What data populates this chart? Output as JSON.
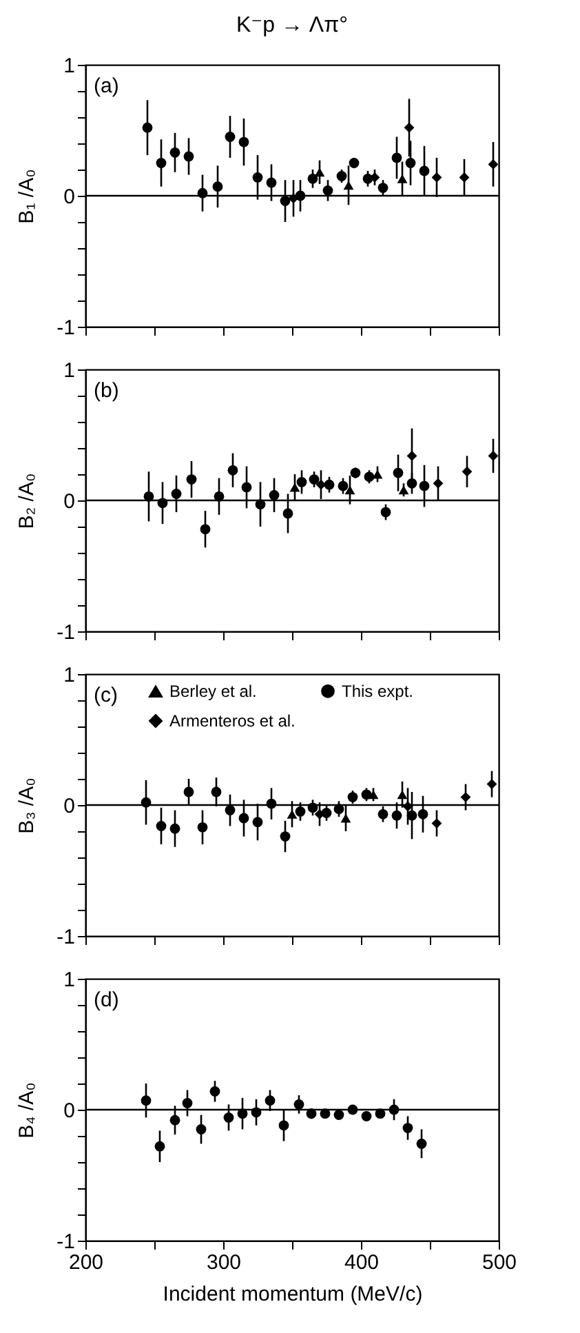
{
  "chart_data": [
    {
      "type": "scatter",
      "title": "K⁻p → Λπ°",
      "ylabel": "B₁ /A₀",
      "annotations": [
        "(a)"
      ],
      "xlim": [
        200,
        500
      ],
      "ylim": [
        -1,
        1
      ],
      "xticks": [
        200,
        {
          "value": 250,
          "label": null
        },
        300,
        {
          "value": 350,
          "label": null
        },
        400,
        {
          "value": 450,
          "label": null
        },
        500
      ],
      "yticks": [
        -1,
        {
          "value": -0.8,
          "label": null
        },
        {
          "value": -0.6,
          "label": null
        },
        {
          "value": -0.4,
          "label": null
        },
        {
          "value": -0.2,
          "label": null
        },
        0,
        {
          "value": 0.2,
          "label": null
        },
        {
          "value": 0.4,
          "label": null
        },
        {
          "value": 0.6,
          "label": null
        },
        {
          "value": 0.8,
          "label": null
        },
        1
      ],
      "tick_labels": "y",
      "ref_lines": [
        {
          "axis": "y",
          "value": 0
        }
      ],
      "series": [
        {
          "color": "#000000",
          "marker": "triangle",
          "x": [
            370,
            391,
            430
          ],
          "values": [
            0.18,
            0.08,
            0.13
          ],
          "errors": [
            0.09,
            0.15,
            0.13
          ]
        },
        {
          "color": "#000000",
          "marker": "circle",
          "x": [
            245,
            255,
            265,
            275,
            285,
            296,
            305,
            315,
            325,
            335,
            345,
            356,
            365,
            376,
            386,
            395,
            405,
            416,
            426,
            436,
            446
          ],
          "values": [
            0.52,
            0.25,
            0.33,
            0.3,
            0.02,
            0.07,
            0.45,
            0.41,
            0.14,
            0.1,
            -0.04,
            0.0,
            0.13,
            0.04,
            0.15,
            0.25,
            0.13,
            0.06,
            0.29,
            0.25,
            0.19
          ],
          "errors": [
            0.21,
            0.18,
            0.15,
            0.14,
            0.14,
            0.16,
            0.16,
            0.18,
            0.17,
            0.14,
            0.16,
            0.12,
            0.07,
            0.08,
            0.05,
            0.04,
            0.06,
            0.06,
            0.16,
            0.17,
            0.19
          ]
        },
        {
          "color": "#000000",
          "marker": "diamond",
          "x": [
            351,
            410,
            435,
            455,
            475,
            496
          ],
          "values": [
            -0.02,
            0.14,
            0.52,
            0.14,
            0.14,
            0.24
          ],
          "errors": [
            0.14,
            0.06,
            0.22,
            0.15,
            0.14,
            0.17
          ]
        }
      ]
    },
    {
      "type": "scatter",
      "ylabel": "B₂ /A₀",
      "annotations": [
        "(b)"
      ],
      "xlim": [
        200,
        500
      ],
      "ylim": [
        -1,
        1
      ],
      "xticks": [
        200,
        {
          "value": 250,
          "label": null
        },
        300,
        {
          "value": 350,
          "label": null
        },
        400,
        {
          "value": 450,
          "label": null
        },
        500
      ],
      "yticks": [
        -1,
        {
          "value": -0.8,
          "label": null
        },
        {
          "value": -0.6,
          "label": null
        },
        {
          "value": -0.4,
          "label": null
        },
        {
          "value": -0.2,
          "label": null
        },
        0,
        {
          "value": 0.2,
          "label": null
        },
        {
          "value": 0.4,
          "label": null
        },
        {
          "value": 0.6,
          "label": null
        },
        {
          "value": 0.8,
          "label": null
        },
        1
      ],
      "tick_labels": "y",
      "ref_lines": [
        {
          "axis": "y",
          "value": 0
        }
      ],
      "series": [
        {
          "color": "#000000",
          "marker": "triangle",
          "x": [
            352,
            392,
            412,
            431
          ],
          "values": [
            0.1,
            0.08,
            0.2,
            0.08
          ],
          "errors": [
            0.1,
            0.11,
            0.06,
            0.05
          ]
        },
        {
          "color": "#000000",
          "marker": "circle",
          "x": [
            246,
            256,
            266,
            277,
            287,
            297,
            307,
            317,
            327,
            337,
            347,
            357,
            366,
            377,
            387,
            396,
            406,
            418,
            427,
            437,
            446
          ],
          "values": [
            0.03,
            -0.02,
            0.05,
            0.16,
            -0.22,
            0.03,
            0.23,
            0.1,
            -0.03,
            0.04,
            -0.1,
            0.14,
            0.16,
            0.12,
            0.11,
            0.21,
            0.18,
            -0.09,
            0.21,
            0.13,
            0.11
          ],
          "errors": [
            0.19,
            0.16,
            0.14,
            0.14,
            0.14,
            0.14,
            0.13,
            0.16,
            0.17,
            0.13,
            0.15,
            0.09,
            0.06,
            0.06,
            0.06,
            0.04,
            0.05,
            0.06,
            0.14,
            0.08,
            0.16
          ]
        },
        {
          "color": "#000000",
          "marker": "diamond",
          "x": [
            371,
            437,
            456,
            477,
            496
          ],
          "values": [
            0.12,
            0.34,
            0.13,
            0.22,
            0.34
          ],
          "errors": [
            0.11,
            0.21,
            0.13,
            0.12,
            0.13
          ]
        }
      ]
    },
    {
      "type": "scatter",
      "ylabel": "B₃ /A₀",
      "annotations": [
        "(c)"
      ],
      "xlim": [
        200,
        500
      ],
      "ylim": [
        -1,
        1
      ],
      "legend": "top left",
      "xticks": [
        200,
        {
          "value": 250,
          "label": null
        },
        300,
        {
          "value": 350,
          "label": null
        },
        400,
        {
          "value": 450,
          "label": null
        },
        500
      ],
      "yticks": [
        -1,
        {
          "value": -0.8,
          "label": null
        },
        {
          "value": -0.6,
          "label": null
        },
        {
          "value": -0.4,
          "label": null
        },
        {
          "value": -0.2,
          "label": null
        },
        0,
        {
          "value": 0.2,
          "label": null
        },
        {
          "value": 0.4,
          "label": null
        },
        {
          "value": 0.6,
          "label": null
        },
        {
          "value": 0.8,
          "label": null
        },
        1
      ],
      "tick_labels": "y",
      "ref_lines": [
        {
          "axis": "y",
          "value": 0
        }
      ],
      "series": [
        {
          "name": "Berley  et al.",
          "color": "#000000",
          "marker": "triangle",
          "x": [
            350,
            389,
            409,
            430
          ],
          "values": [
            -0.07,
            -0.1,
            0.08,
            0.08
          ],
          "errors": [
            0.1,
            0.1,
            0.05,
            0.1
          ]
        },
        {
          "name": "This expt.",
          "color": "#000000",
          "marker": "circle",
          "x": [
            244,
            255,
            265,
            275,
            285,
            295,
            305,
            315,
            325,
            335,
            345,
            356,
            365,
            375,
            384,
            394,
            404,
            416,
            426,
            437,
            445
          ],
          "values": [
            0.02,
            -0.16,
            -0.18,
            0.1,
            -0.17,
            0.1,
            -0.04,
            -0.1,
            -0.13,
            0.01,
            -0.24,
            -0.05,
            -0.02,
            -0.06,
            -0.03,
            0.06,
            0.08,
            -0.07,
            -0.08,
            -0.08,
            -0.07
          ],
          "errors": [
            0.17,
            0.14,
            0.14,
            0.1,
            0.13,
            0.11,
            0.12,
            0.14,
            0.14,
            0.12,
            0.12,
            0.07,
            0.06,
            0.06,
            0.06,
            0.05,
            0.05,
            0.06,
            0.1,
            0.18,
            0.14
          ]
        },
        {
          "name": "Armenteros  et al.",
          "color": "#000000",
          "marker": "diamond",
          "x": [
            370,
            434,
            455,
            476,
            495
          ],
          "values": [
            -0.07,
            -0.01,
            -0.14,
            0.06,
            0.16
          ],
          "errors": [
            0.09,
            0.14,
            0.1,
            0.1,
            0.1
          ]
        }
      ]
    },
    {
      "type": "scatter",
      "ylabel": "B₄ /A₀",
      "xlabel": "Incident momentum (MeV/c)",
      "annotations": [
        "(d)"
      ],
      "xlim": [
        200,
        500
      ],
      "ylim": [
        -1,
        1
      ],
      "xticks": [
        200,
        {
          "value": 250,
          "label": null
        },
        300,
        {
          "value": 350,
          "label": null
        },
        400,
        {
          "value": 450,
          "label": null
        },
        500
      ],
      "yticks": [
        -1,
        {
          "value": -0.8,
          "label": null
        },
        {
          "value": -0.6,
          "label": null
        },
        {
          "value": -0.4,
          "label": null
        },
        {
          "value": -0.2,
          "label": null
        },
        0,
        {
          "value": 0.2,
          "label": null
        },
        {
          "value": 0.4,
          "label": null
        },
        {
          "value": 0.6,
          "label": null
        },
        {
          "value": 0.8,
          "label": null
        },
        1
      ],
      "ref_lines": [
        {
          "axis": "y",
          "value": 0
        }
      ],
      "series": [
        {
          "color": "#000000",
          "marker": "circle",
          "x": [
            244,
            254,
            265,
            274,
            284,
            294,
            304,
            314,
            324,
            334,
            344,
            355,
            364,
            374,
            384,
            394,
            404,
            414,
            424,
            434,
            444
          ],
          "values": [
            0.07,
            -0.28,
            -0.08,
            0.05,
            -0.15,
            0.14,
            -0.06,
            -0.03,
            -0.02,
            0.07,
            -0.12,
            0.04,
            -0.03,
            -0.03,
            -0.04,
            0.0,
            -0.05,
            -0.03,
            0.0,
            -0.14,
            -0.26
          ],
          "errors": [
            0.13,
            0.12,
            0.11,
            0.1,
            0.11,
            0.08,
            0.1,
            0.12,
            0.1,
            0.08,
            0.12,
            0.07,
            0.04,
            0.03,
            0.03,
            0.03,
            0.03,
            0.03,
            0.08,
            0.09,
            0.11
          ]
        }
      ]
    }
  ]
}
